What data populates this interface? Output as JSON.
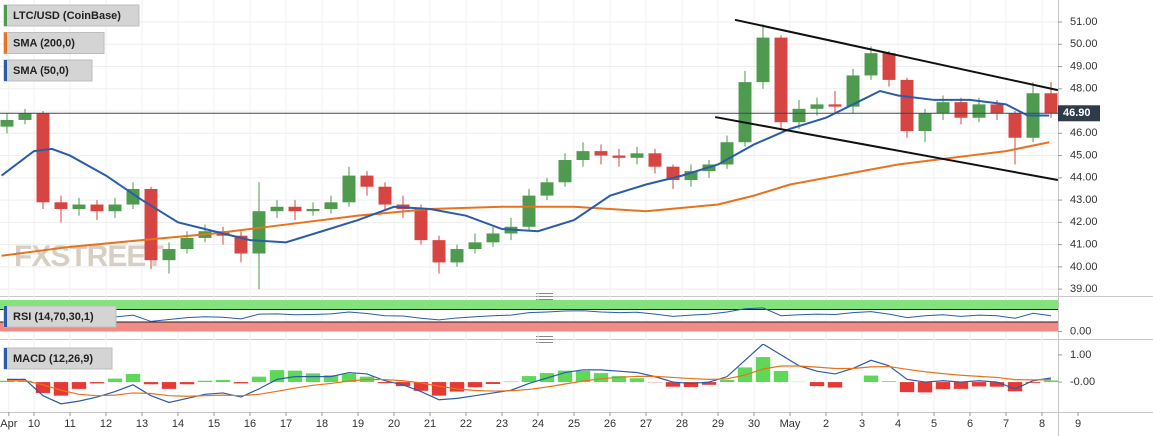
{
  "chart_data": [
    {
      "type": "candlestick",
      "xlim": [
        9.0556,
        38.444
      ],
      "ylim": [
        38.78,
        51.9
      ],
      "yticks": [
        {
          "value": 39,
          "label": "39.00"
        },
        {
          "value": 40,
          "label": "40.00"
        },
        {
          "value": 41,
          "label": "41.00"
        },
        {
          "value": 42,
          "label": "42.00"
        },
        {
          "value": 43,
          "label": "43.00"
        },
        {
          "value": 44,
          "label": "44.00"
        },
        {
          "value": 45,
          "label": "45.00"
        },
        {
          "value": 46,
          "label": "46.00"
        },
        {
          "value": 47,
          "label": "47.00"
        },
        {
          "value": 48,
          "label": "48.00"
        },
        {
          "value": 49,
          "label": "49.00"
        },
        {
          "value": 50,
          "label": "50.00"
        },
        {
          "value": 51,
          "label": "51.00"
        }
      ],
      "grid": true,
      "watermark": "FXSTREET",
      "last_price": {
        "value": 46.9,
        "label": "46.90"
      },
      "series": [
        {
          "name": "LTC/USD (CoinBase)",
          "type": "candlestick",
          "up_color": "#4e9a4e",
          "down_color": "#d64541",
          "x": [
            9.25,
            9.75,
            10.25,
            10.75,
            11.25,
            11.75,
            12.25,
            12.75,
            13.25,
            13.75,
            14.25,
            14.75,
            15.25,
            15.75,
            16.25,
            16.75,
            17.25,
            17.75,
            18.25,
            18.75,
            19.25,
            19.75,
            20.25,
            20.75,
            21.25,
            21.75,
            22.25,
            22.75,
            23.25,
            23.75,
            24.25,
            24.75,
            25.25,
            25.75,
            26.25,
            26.75,
            27.25,
            27.75,
            28.25,
            28.75,
            29.25,
            29.75,
            30.25,
            30.75,
            31.25,
            31.75,
            32.25,
            32.75,
            33.25,
            33.75,
            34.25,
            34.75,
            35.25,
            35.75,
            36.25,
            36.75,
            37.25,
            37.75,
            38.25
          ],
          "open": [
            46.3,
            46.6,
            46.9,
            42.9,
            42.6,
            42.8,
            42.5,
            42.8,
            43.5,
            40.3,
            40.8,
            41.3,
            41.6,
            41.4,
            40.6,
            42.5,
            42.7,
            42.5,
            42.6,
            42.9,
            44.1,
            43.6,
            42.8,
            42.6,
            41.2,
            40.2,
            40.8,
            41.1,
            41.5,
            41.8,
            43.2,
            43.8,
            44.8,
            45.2,
            45.0,
            44.9,
            45.1,
            44.5,
            43.9,
            44.3,
            44.6,
            45.6,
            48.3,
            50.3,
            46.5,
            47.1,
            47.3,
            47.2,
            48.6,
            49.6,
            48.4,
            46.1,
            46.9,
            47.4,
            46.7,
            47.3,
            46.9,
            45.8,
            47.8
          ],
          "high": [
            46.9,
            47.1,
            47.0,
            43.2,
            43.1,
            43.0,
            43.1,
            43.8,
            43.6,
            41.1,
            41.6,
            41.9,
            41.8,
            41.6,
            43.8,
            43.0,
            43.0,
            42.9,
            43.2,
            44.5,
            44.3,
            43.8,
            43.2,
            42.8,
            41.4,
            41.0,
            41.5,
            41.8,
            42.2,
            43.5,
            44.0,
            45.1,
            45.6,
            45.5,
            45.3,
            45.4,
            45.3,
            44.6,
            44.6,
            44.8,
            45.9,
            48.8,
            50.9,
            50.4,
            47.5,
            47.6,
            47.9,
            48.9,
            49.9,
            49.7,
            48.5,
            47.1,
            47.7,
            47.6,
            47.6,
            47.5,
            47.0,
            48.3,
            48.3
          ],
          "low": [
            46.0,
            46.4,
            42.6,
            42.0,
            42.3,
            42.1,
            42.2,
            42.6,
            39.9,
            39.7,
            40.6,
            41.1,
            41.0,
            40.2,
            39.0,
            42.2,
            42.1,
            42.3,
            42.4,
            42.7,
            43.2,
            42.5,
            42.2,
            41.0,
            39.7,
            40.0,
            40.6,
            40.9,
            41.2,
            41.6,
            43.0,
            43.6,
            44.5,
            44.6,
            44.5,
            44.6,
            44.2,
            43.5,
            43.6,
            44.0,
            44.4,
            45.4,
            48.0,
            46.2,
            46.2,
            46.8,
            46.9,
            46.9,
            48.4,
            48.1,
            45.8,
            45.6,
            46.6,
            46.4,
            46.5,
            46.6,
            44.6,
            45.6,
            46.7
          ],
          "close": [
            46.6,
            46.9,
            42.9,
            42.6,
            42.8,
            42.5,
            42.8,
            43.5,
            40.3,
            40.8,
            41.3,
            41.6,
            41.4,
            40.6,
            42.5,
            42.7,
            42.5,
            42.6,
            42.9,
            44.1,
            43.6,
            42.8,
            42.6,
            41.2,
            40.2,
            40.8,
            41.1,
            41.5,
            41.8,
            43.2,
            43.8,
            44.8,
            45.2,
            45.0,
            44.9,
            45.1,
            44.5,
            43.9,
            44.3,
            44.6,
            45.6,
            48.3,
            50.3,
            46.5,
            47.1,
            47.3,
            47.2,
            48.6,
            49.6,
            48.4,
            46.1,
            46.9,
            47.4,
            46.7,
            47.3,
            46.9,
            45.8,
            47.8,
            46.9
          ]
        },
        {
          "name": "SMA (200,0)",
          "color": "#e8731c",
          "x": [
            9.1,
            11,
            13,
            15,
            17,
            19,
            21,
            23,
            25,
            27,
            29,
            30,
            31,
            32,
            33,
            34,
            35,
            36,
            37,
            38.2
          ],
          "values": [
            40.5,
            40.9,
            41.2,
            41.5,
            41.9,
            42.3,
            42.6,
            42.7,
            42.7,
            42.5,
            42.8,
            43.2,
            43.7,
            44.0,
            44.3,
            44.6,
            44.8,
            45.0,
            45.2,
            45.6
          ]
        },
        {
          "name": "SMA (50,0)",
          "color": "#2a5caa",
          "x": [
            9.1,
            10,
            10.5,
            11,
            12,
            13,
            14,
            15,
            16,
            17,
            18,
            19,
            20,
            21,
            22,
            23,
            24,
            25,
            26,
            27,
            28,
            29,
            30,
            31,
            32,
            33,
            33.5,
            34,
            35,
            36,
            37,
            37.6,
            38.2
          ],
          "values": [
            44.1,
            45.2,
            45.3,
            45.0,
            44.1,
            43.0,
            42.0,
            41.6,
            41.2,
            41.1,
            41.6,
            42.1,
            42.7,
            42.6,
            42.3,
            41.7,
            41.6,
            42.1,
            43.2,
            43.7,
            44.1,
            44.6,
            45.5,
            46.2,
            46.7,
            47.5,
            47.9,
            47.7,
            47.5,
            47.5,
            47.3,
            46.8,
            46.8
          ]
        }
      ],
      "trendlines": [
        {
          "color": "#111111",
          "x": [
            29.47,
            38.44
          ],
          "values": [
            51.1,
            47.94
          ]
        },
        {
          "color": "#111111",
          "x": [
            28.92,
            38.44
          ],
          "values": [
            46.73,
            43.9
          ]
        }
      ]
    },
    {
      "type": "line",
      "xlim": [
        9.0556,
        38.444
      ],
      "ylim": [
        -8,
        100
      ],
      "yticks": [
        {
          "value": 0,
          "label": "0.00"
        }
      ],
      "overbought": 70,
      "oversold": 30,
      "band_colors": [
        "#84e27c",
        "#f28b86"
      ],
      "series": [
        {
          "name": "RSI (14,70,30,1)",
          "color": "#2a5caa",
          "values": [
            55,
            58,
            35,
            40,
            44,
            42,
            46,
            52,
            32,
            38,
            44,
            47,
            45,
            40,
            55,
            56,
            53,
            54,
            56,
            62,
            57,
            50,
            49,
            42,
            37,
            43,
            47,
            50,
            52,
            60,
            62,
            65,
            66,
            62,
            60,
            61,
            55,
            48,
            52,
            55,
            62,
            72,
            75,
            50,
            53,
            55,
            54,
            60,
            63,
            55,
            44,
            50,
            53,
            48,
            52,
            50,
            42,
            58,
            50
          ]
        }
      ]
    },
    {
      "type": "macd",
      "xlim": [
        9.0556,
        38.444
      ],
      "ylim": [
        -1.1,
        1.4
      ],
      "yticks": [
        {
          "value": 1,
          "label": "1.00"
        },
        {
          "value": 0,
          "label": "-0.00"
        }
      ],
      "xticks": [
        {
          "value": 9.3,
          "label": "Apr"
        },
        10,
        11,
        12,
        13,
        14,
        15,
        16,
        17,
        18,
        19,
        20,
        21,
        22,
        23,
        24,
        25,
        26,
        27,
        28,
        29,
        30,
        {
          "value": 31,
          "label": "May"
        },
        {
          "value": 32,
          "label": "2"
        },
        {
          "value": 33,
          "label": "3"
        },
        {
          "value": 34,
          "label": "4"
        },
        {
          "value": 35,
          "label": "5"
        },
        {
          "value": 36,
          "label": "6"
        },
        {
          "value": 37,
          "label": "7"
        },
        {
          "value": 38,
          "label": "8"
        },
        {
          "value": 39,
          "label": "9"
        }
      ],
      "series": [
        {
          "name": "MACD (12,26,9)",
          "color": "#2a5caa",
          "values": [
            0.1,
            0.1,
            -0.5,
            -0.8,
            -0.7,
            -0.55,
            -0.35,
            -0.1,
            -0.5,
            -0.75,
            -0.6,
            -0.45,
            -0.4,
            -0.55,
            -0.25,
            0.1,
            0.2,
            0.2,
            0.2,
            0.35,
            0.3,
            0.05,
            -0.1,
            -0.35,
            -0.65,
            -0.6,
            -0.5,
            -0.4,
            -0.3,
            -0.05,
            0.15,
            0.35,
            0.45,
            0.45,
            0.4,
            0.35,
            0.2,
            0.0,
            -0.05,
            0.0,
            0.2,
            0.8,
            1.4,
            1.0,
            0.6,
            0.4,
            0.3,
            0.5,
            0.8,
            0.6,
            0.1,
            0.0,
            0.05,
            0.0,
            0.05,
            0.0,
            -0.25,
            0.05,
            0.15
          ]
        },
        {
          "color": "#e8731c",
          "values": [
            0.05,
            0.05,
            -0.1,
            -0.3,
            -0.45,
            -0.5,
            -0.48,
            -0.4,
            -0.42,
            -0.5,
            -0.52,
            -0.5,
            -0.48,
            -0.5,
            -0.45,
            -0.34,
            -0.22,
            -0.12,
            -0.05,
            0.04,
            0.1,
            0.09,
            0.05,
            -0.03,
            -0.15,
            -0.25,
            -0.31,
            -0.33,
            -0.32,
            -0.27,
            -0.18,
            -0.07,
            0.04,
            0.12,
            0.18,
            0.21,
            0.21,
            0.17,
            0.13,
            0.1,
            0.12,
            0.26,
            0.48,
            0.59,
            0.59,
            0.55,
            0.5,
            0.5,
            0.56,
            0.57,
            0.47,
            0.38,
            0.31,
            0.25,
            0.21,
            0.17,
            0.09,
            0.08,
            0.09
          ]
        },
        {
          "type": "histogram",
          "up_color": "#5fd85a",
          "down_color": "#e53935",
          "values": [
            0.05,
            0.05,
            -0.4,
            -0.5,
            -0.25,
            -0.05,
            0.13,
            0.3,
            -0.08,
            -0.25,
            -0.08,
            0.05,
            0.08,
            -0.05,
            0.2,
            0.44,
            0.42,
            0.32,
            0.25,
            0.31,
            0.2,
            -0.04,
            -0.15,
            -0.32,
            -0.5,
            -0.35,
            -0.19,
            -0.07,
            0.02,
            0.22,
            0.33,
            0.42,
            0.41,
            0.33,
            0.22,
            0.14,
            -0.01,
            -0.17,
            -0.18,
            -0.1,
            0.08,
            0.54,
            0.92,
            0.41,
            0.01,
            -0.15,
            -0.2,
            0.0,
            0.24,
            0.03,
            -0.37,
            -0.38,
            -0.26,
            -0.25,
            -0.16,
            -0.17,
            -0.34,
            -0.03,
            0.06
          ]
        }
      ]
    }
  ]
}
